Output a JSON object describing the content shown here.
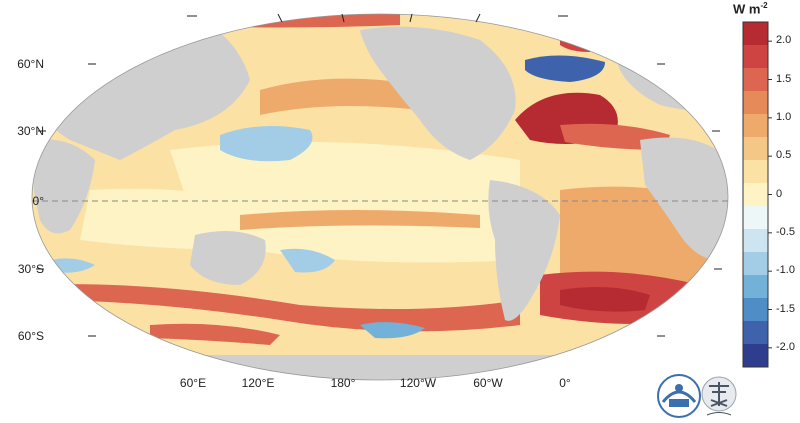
{
  "map": {
    "lat_labels": [
      "60°N",
      "30°N",
      "0°",
      "30°S",
      "60°S"
    ],
    "lon_labels": [
      "60°E",
      "120°E",
      "180°",
      "120°W",
      "60°W",
      "0°"
    ],
    "equator_dashed": true
  },
  "colorbar": {
    "unit_base": "W m",
    "unit_exp": "-2",
    "ticks": [
      "2.0",
      "1.5",
      "1.0",
      "0.5",
      "0",
      "-0.5",
      "-1.0",
      "-1.5",
      "-2.0"
    ],
    "range": [
      -2.25,
      2.25
    ],
    "colors": [
      "#2f3d8f",
      "#3e63ac",
      "#4e8dc6",
      "#74b1d9",
      "#a3cde6",
      "#cde5f0",
      "#eef7f7",
      "#fdf3c5",
      "#fbe1a4",
      "#f5c787",
      "#eeaa6b",
      "#e78a5a",
      "#dd6650",
      "#cd4443",
      "#b62a31"
    ]
  },
  "ocean_colors": {
    "land": "#cfcfcf",
    "near_zero": "#fdf3c5",
    "weak_warm": "#fbe1a4",
    "warm": "#eeaa6b",
    "strong_warm": "#dd6650",
    "very_strong_warm": "#b62a31",
    "weak_cool": "#cde5f0",
    "cool": "#74b1d9",
    "strong_cool": "#3e63ac"
  },
  "logos": [
    "IAP-logo",
    "earth-logo"
  ]
}
